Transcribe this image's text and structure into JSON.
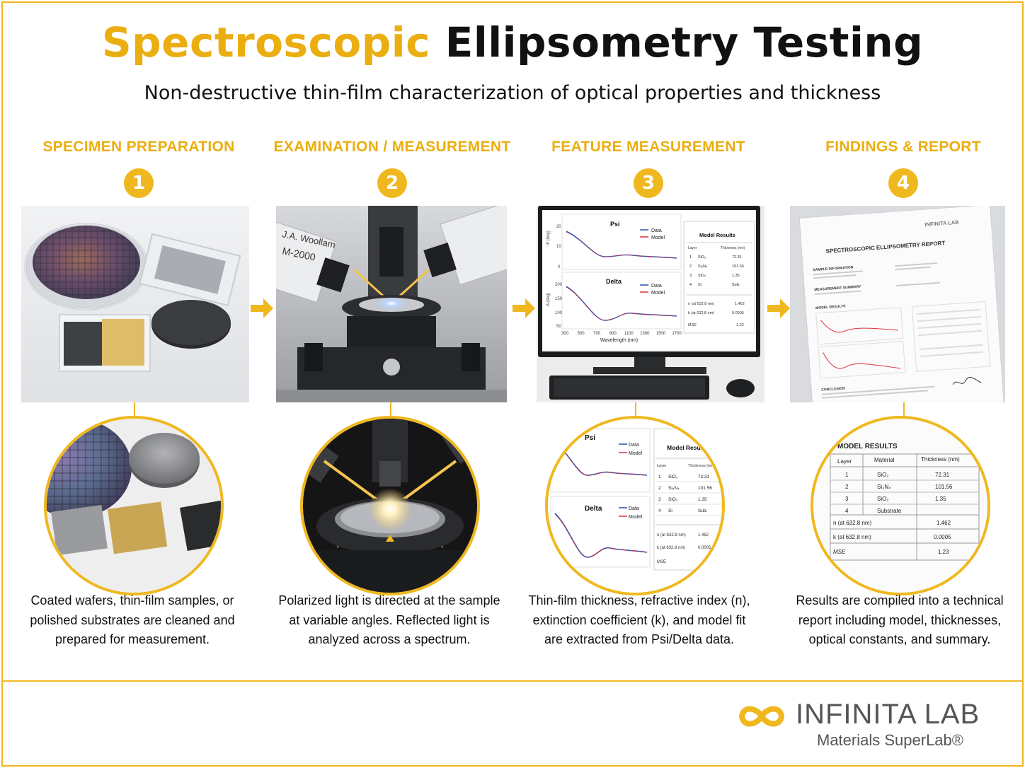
{
  "header": {
    "title_accent": "Spectroscopic",
    "title_main": "Ellipsometry Testing",
    "subtitle": "Non-destructive thin-film characterization of optical properties and thickness"
  },
  "steps": [
    {
      "number": "1",
      "title": "SPECIMEN PREPARATION",
      "description": "Coated wafers, thin-film samples, or polished substrates are cleaned and prepared for measurement."
    },
    {
      "number": "2",
      "title": "EXAMINATION / MEASUREMENT",
      "description": "Polarized light is directed at the sample at variable angles. Reflected light is analyzed across a spectrum.",
      "instrument_label_1": "J.A. Woollam",
      "instrument_label_2": "M-2000"
    },
    {
      "number": "3",
      "title": "FEATURE MEASUREMENT",
      "description": "Thin-film thickness, refractive index (n), extinction coefficient (k), and model fit are extracted from Psi/Delta data.",
      "screen": {
        "psi_label": "Psi",
        "delta_label": "Delta",
        "legend_data": "Data",
        "legend_model": "Model",
        "x_axis_label": "Wavelength (nm)",
        "psi_axis_label": "Ψ (deg)",
        "delta_axis_label": "Δ (deg)",
        "x_ticks": [
          "300",
          "500",
          "700",
          "900",
          "1100",
          "1300",
          "1500",
          "1700"
        ],
        "psi_ticks": [
          "20",
          "10",
          "0"
        ],
        "delta_ticks": [
          "200",
          "150",
          "100",
          "50"
        ],
        "results_title": "Model Results",
        "col_layer": "Layer",
        "col_thickness": "Thickness (nm)",
        "rows": [
          {
            "layer": "1",
            "material": "SiO₂",
            "thickness": "72.31"
          },
          {
            "layer": "2",
            "material": "Si₃N₄",
            "thickness": "101.56"
          },
          {
            "layer": "3",
            "material": "SiO₂",
            "thickness": "1.35"
          },
          {
            "layer": "4",
            "material": "Si",
            "thickness": "Sub."
          }
        ],
        "n_label": "n (at 632.8 nm)",
        "n_value": "1.462",
        "k_label": "k (at 632.8 nm)",
        "k_value": "0.0005",
        "mse_label": "MSE",
        "mse_value": "1.23"
      }
    },
    {
      "number": "4",
      "title": "FINDINGS & REPORT",
      "description": "Results are compiled into a technical report including model, thicknesses, optical constants, and summary.",
      "report": {
        "heading": "SPECTROSCOPIC ELLIPSOMETRY REPORT",
        "sample_info": "SAMPLE INFORMATION",
        "measurement_summary": "MEASUREMENT SUMMARY",
        "model_results_small": "MODEL RESULTS",
        "conclusion": "CONCLUSION",
        "logo": "INFINITA LAB",
        "model_results_title": "MODEL RESULTS",
        "col_layer": "Layer",
        "col_material": "Material",
        "col_thickness": "Thickness (nm)",
        "rows": [
          {
            "layer": "1",
            "material": "SiO₂",
            "thickness": "72.31"
          },
          {
            "layer": "2",
            "material": "Si₃N₄",
            "thickness": "101.56"
          },
          {
            "layer": "3",
            "material": "SiO₂",
            "thickness": "1.35"
          },
          {
            "layer": "4",
            "material": "Substrate",
            "thickness": ""
          }
        ],
        "n_label": "n (at 632.8 nm)",
        "n_value": "1.462",
        "k_label": "k (at 632.8 nm)",
        "k_value": "0.0005",
        "mse_label": "MSE",
        "mse_value": "1.23"
      }
    }
  ],
  "brand": {
    "name": "INFINITA LAB",
    "tagline": "Materials SuperLab®"
  },
  "colors": {
    "accent": "#f0b81f",
    "accent_text": "#ebae10",
    "data_line": "#2b4fb5",
    "model_line": "#d8333a"
  }
}
